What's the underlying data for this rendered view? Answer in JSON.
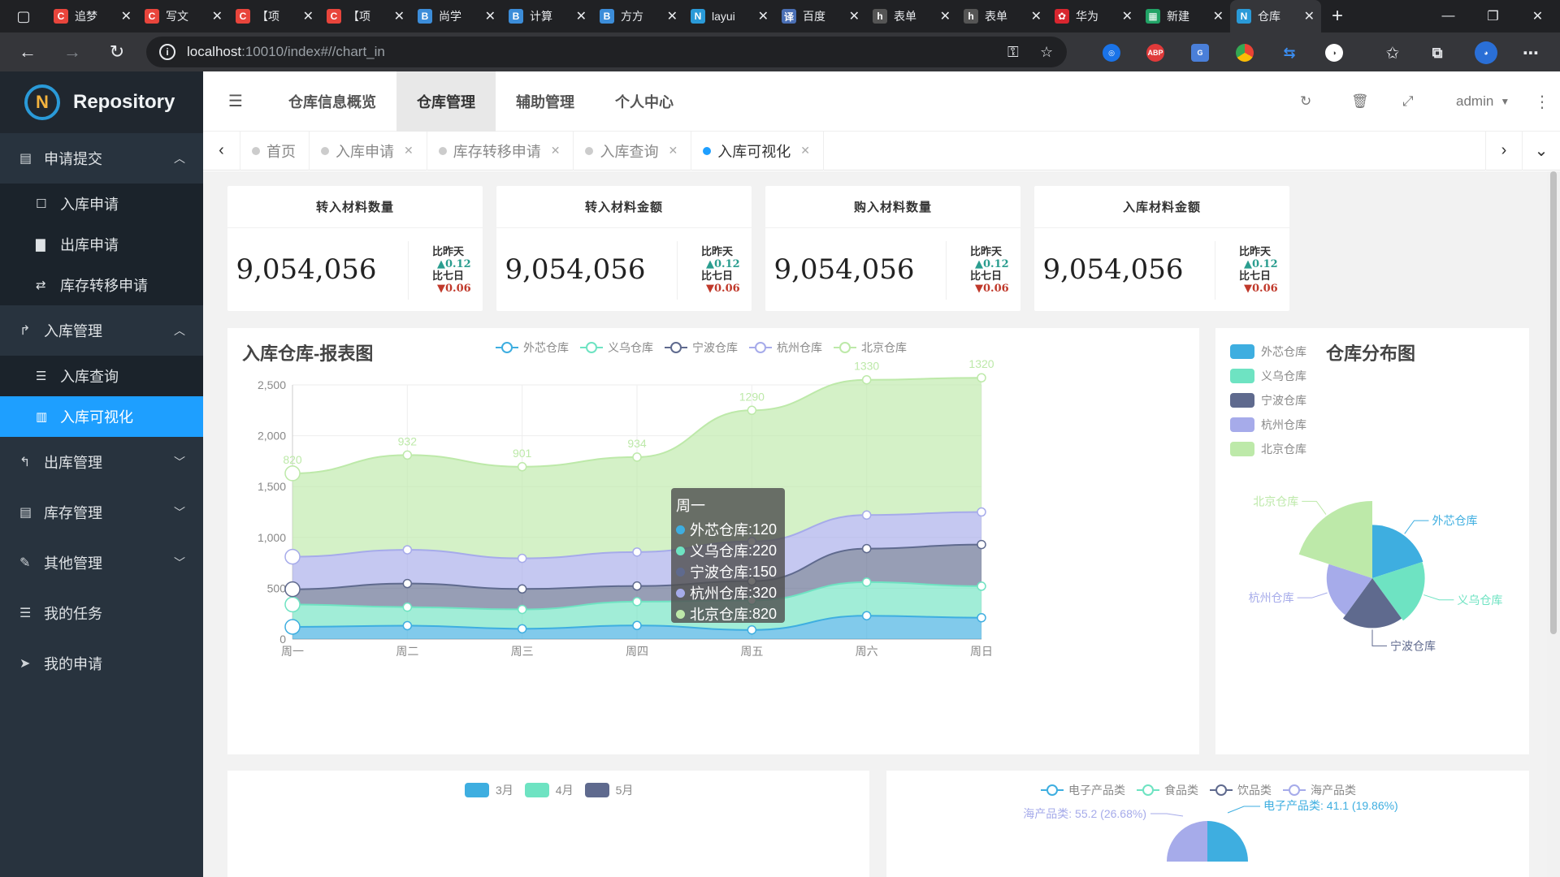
{
  "browser": {
    "tabs": [
      {
        "title": "追梦",
        "color": "#e8453c",
        "letter": "C"
      },
      {
        "title": "写文",
        "color": "#e8453c",
        "letter": "C"
      },
      {
        "title": "【项",
        "color": "#e8453c",
        "letter": "C"
      },
      {
        "title": "【项",
        "color": "#e8453c",
        "letter": "C"
      },
      {
        "title": "尚学",
        "color": "#3c8dd9",
        "letter": "B"
      },
      {
        "title": "计算",
        "color": "#3c8dd9",
        "letter": "B"
      },
      {
        "title": "方方",
        "color": "#3c8dd9",
        "letter": "B"
      },
      {
        "title": "layui",
        "color": "#2a9ad8",
        "letter": "N"
      },
      {
        "title": "百度",
        "color": "#4a6fb5",
        "letter": "译"
      },
      {
        "title": "表单",
        "color": "#555555",
        "letter": "h"
      },
      {
        "title": "表单",
        "color": "#555555",
        "letter": "h"
      },
      {
        "title": "华为",
        "color": "#d8262f",
        "letter": "✿"
      },
      {
        "title": "新建",
        "color": "#21a366",
        "letter": "▦"
      },
      {
        "title": "仓库",
        "color": "#2a9ad8",
        "letter": "N",
        "active": true
      }
    ],
    "url_host": "localhost",
    "url_rest": ":10010/index#//chart_in"
  },
  "sidebar": {
    "app_name": "Repository",
    "groups": [
      {
        "icon": "▤",
        "label": "申请提交",
        "expanded": true,
        "items": [
          {
            "icon": "☐",
            "label": "入库申请"
          },
          {
            "icon": "▇",
            "label": "出库申请"
          },
          {
            "icon": "⇄",
            "label": "库存转移申请"
          }
        ]
      },
      {
        "icon": "↱",
        "label": "入库管理",
        "expanded": true,
        "items": [
          {
            "icon": "☰",
            "label": "入库查询"
          },
          {
            "icon": "▥",
            "label": "入库可视化",
            "selected": true
          }
        ]
      },
      {
        "icon": "↰",
        "label": "出库管理",
        "expanded": false
      },
      {
        "icon": "▤",
        "label": "库存管理",
        "expanded": false
      },
      {
        "icon": "✎",
        "label": "其他管理",
        "expanded": false
      },
      {
        "icon": "☰",
        "label": "我的任务"
      },
      {
        "icon": "➤",
        "label": "我的申请"
      }
    ]
  },
  "header": {
    "nav": [
      "仓库信息概览",
      "仓库管理",
      "辅助管理",
      "个人中心"
    ],
    "selected_nav": 1,
    "user": "admin"
  },
  "page_tabs": [
    {
      "label": "首页",
      "closable": false
    },
    {
      "label": "入库申请",
      "closable": true
    },
    {
      "label": "库存转移申请",
      "closable": true
    },
    {
      "label": "入库查询",
      "closable": true
    },
    {
      "label": "入库可视化",
      "closable": true,
      "selected": true
    }
  ],
  "stats": [
    {
      "title": "转入材料数量",
      "value": "9,054,056",
      "day_label": "比昨天",
      "day_change": "▲0.12",
      "week_label": "比七日",
      "week_change": "▼0.06"
    },
    {
      "title": "转入材料金额",
      "value": "9,054,056",
      "day_label": "比昨天",
      "day_change": "▲0.12",
      "week_label": "比七日",
      "week_change": "▼0.06"
    },
    {
      "title": "购入材料数量",
      "value": "9,054,056",
      "day_label": "比昨天",
      "day_change": "▲0.12",
      "week_label": "比七日",
      "week_change": "▼0.06"
    },
    {
      "title": "入库材料金额",
      "value": "9,054,056",
      "day_label": "比昨天",
      "day_change": "▲0.12",
      "week_label": "比七日",
      "week_change": "▼0.06"
    }
  ],
  "colors": {
    "外芯仓库": "#3eaee0",
    "义乌仓库": "#6ee3c2",
    "宁波仓库": "#5f6a8e",
    "杭州仓库": "#a6abea",
    "北京仓库": "#bde9a9"
  },
  "chart_data": [
    {
      "type": "area",
      "stacked": true,
      "title": "入库仓库-报表图",
      "categories": [
        "周一",
        "周二",
        "周三",
        "周四",
        "周五",
        "周六",
        "周日"
      ],
      "ylim": [
        0,
        2500
      ],
      "yticks": [
        "0",
        "500",
        "1,000",
        "1,500",
        "2,000",
        "2,500"
      ],
      "legend_position": "top",
      "grid": true,
      "series": [
        {
          "name": "外芯仓库",
          "values": [
            120,
            132,
            101,
            134,
            90,
            230,
            210
          ]
        },
        {
          "name": "义乌仓库",
          "values": [
            220,
            182,
            191,
            234,
            290,
            330,
            310
          ]
        },
        {
          "name": "宁波仓库",
          "values": [
            150,
            232,
            201,
            154,
            190,
            330,
            410
          ]
        },
        {
          "name": "杭州仓库",
          "values": [
            320,
            332,
            301,
            334,
            390,
            330,
            320
          ]
        },
        {
          "name": "北京仓库",
          "values": [
            820,
            932,
            901,
            934,
            1290,
            1330,
            1320
          ]
        }
      ],
      "top_labels": [
        "820",
        "932",
        "901",
        "934",
        "1290",
        "1330",
        "1320"
      ]
    },
    {
      "type": "pie",
      "title": "仓库分布图",
      "legend_position": "top-left",
      "labels": [
        "外芯仓库",
        "义乌仓库",
        "宁波仓库",
        "杭州仓库",
        "北京仓库"
      ],
      "values": [
        335,
        310,
        234,
        135,
        1548
      ]
    }
  ],
  "tooltip": {
    "header": "周一",
    "rows": [
      {
        "name": "外芯仓库",
        "value": "120"
      },
      {
        "name": "义乌仓库",
        "value": "220"
      },
      {
        "name": "宁波仓库",
        "value": "150"
      },
      {
        "name": "杭州仓库",
        "value": "320"
      },
      {
        "name": "北京仓库",
        "value": "820"
      }
    ]
  },
  "bottom_left_legend": [
    {
      "label": "3月",
      "color": "#3eaee0"
    },
    {
      "label": "4月",
      "color": "#6ee3c2"
    },
    {
      "label": "5月",
      "color": "#5f6a8e"
    }
  ],
  "bottom_right": {
    "legend": [
      "电子产品类",
      "食品类",
      "饮品类",
      "海产品类"
    ],
    "legend_colors": [
      "#3eaee0",
      "#6ee3c2",
      "#5f6a8e",
      "#a6abea"
    ],
    "label_right": "电子产品类: 41.1 (19.86%)",
    "label_left": "海产品类: 55.2 (26.68%)"
  }
}
